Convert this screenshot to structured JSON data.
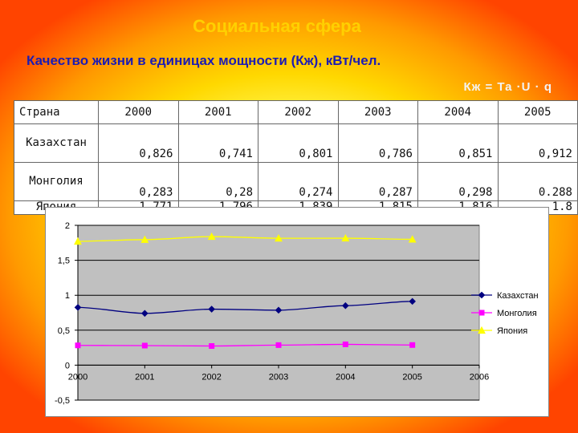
{
  "header": {
    "title": "Социальная сфера",
    "subtitle": "Качество жизни в единицах мощности (Кж), кВт/чел.",
    "formula": "Кж = Та ·U · q"
  },
  "table": {
    "corner": "Страна",
    "years": [
      "2000",
      "2001",
      "2002",
      "2003",
      "2004",
      "2005"
    ],
    "rows": [
      {
        "country": "Казахстан",
        "values": [
          "0,826",
          "0,741",
          "0,801",
          "0,786",
          "0,851",
          "0,912"
        ]
      },
      {
        "country": "Монголия",
        "values": [
          "0,283",
          "0,28",
          "0,274",
          "0,287",
          "0,298",
          "0.288"
        ]
      },
      {
        "country": "Япония",
        "values": [
          "1,771",
          "1,796",
          "1,839",
          "1,815",
          "1,816",
          "1.8"
        ]
      }
    ]
  },
  "chart_data": {
    "type": "line",
    "x": [
      2000,
      2001,
      2002,
      2003,
      2004,
      2005
    ],
    "xticks": [
      "2000",
      "2001",
      "2002",
      "2003",
      "2004",
      "2005",
      "2006"
    ],
    "xlim": [
      2000,
      2006
    ],
    "ylim": [
      -0.5,
      2
    ],
    "yticks": [
      "-0,5",
      "0",
      "0,5",
      "1",
      "1,5",
      "2"
    ],
    "plot_background": "#c0c0c0",
    "series": [
      {
        "name": "Казахстан",
        "color": "#000080",
        "marker": "diamond",
        "values": [
          0.826,
          0.741,
          0.801,
          0.786,
          0.851,
          0.912
        ]
      },
      {
        "name": "Монголия",
        "color": "#ff00ff",
        "marker": "square",
        "values": [
          0.283,
          0.28,
          0.274,
          0.287,
          0.298,
          0.288
        ]
      },
      {
        "name": "Япония",
        "color": "#ffff00",
        "marker": "triangle",
        "values": [
          1.771,
          1.796,
          1.839,
          1.815,
          1.816,
          1.8
        ]
      }
    ]
  }
}
